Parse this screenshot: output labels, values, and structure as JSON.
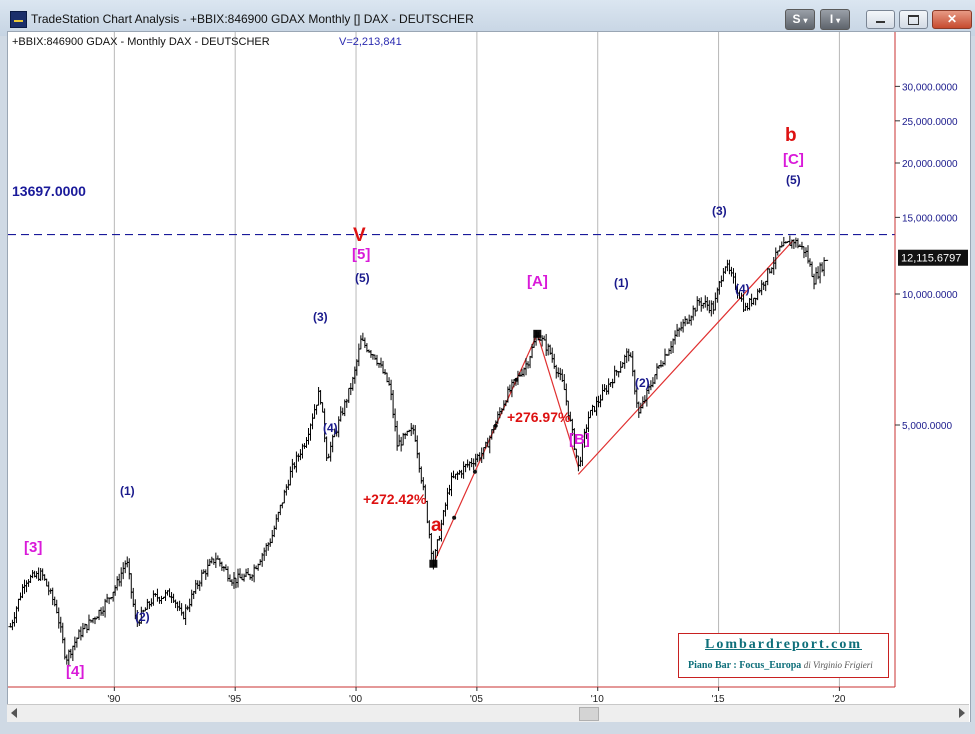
{
  "window": {
    "title": "TradeStation Chart Analysis - +BBIX:846900 GDAX Monthly [] DAX - DEUTSCHER",
    "s_button": "S",
    "i_button": "I"
  },
  "chart_data": {
    "type": "bar",
    "title": "+BBIX:846900 GDAX - Monthly  DAX - DEUTSCHER",
    "volume_label": "V=2,213,841",
    "y_scale": "log",
    "x_tick_labels": [
      "'90",
      "'95",
      "'00",
      "'05",
      "'10",
      "'15",
      "'20"
    ],
    "x_tick_years": [
      1990,
      1995,
      2000,
      2005,
      2010,
      2015,
      2020
    ],
    "y_tick_labels": [
      "30,000.0000",
      "25,000.0000",
      "20,000.0000",
      "15,000.0000",
      "10,000.0000",
      "5,000.0000"
    ],
    "y_tick_values": [
      30000,
      25000,
      20000,
      15000,
      10000,
      5000
    ],
    "ylim": [
      1250,
      40000
    ],
    "xlim": [
      1985.6,
      2022.3
    ],
    "horizontal_line": {
      "value": 13697,
      "label": "13697.0000",
      "color": "#1a1a9a"
    },
    "last_price": {
      "value": 12115.6797,
      "label": "12,115.6797"
    },
    "price_color": "#000000",
    "anchors": [
      [
        1985.7,
        1720
      ],
      [
        1986.3,
        2200
      ],
      [
        1987.0,
        2270
      ],
      [
        1987.6,
        1900
      ],
      [
        1988.0,
        1450
      ],
      [
        1988.5,
        1640
      ],
      [
        1989.5,
        1900
      ],
      [
        1990.1,
        2150
      ],
      [
        1990.5,
        2450
      ],
      [
        1990.9,
        1750
      ],
      [
        1991.6,
        2000
      ],
      [
        1992.4,
        2050
      ],
      [
        1992.8,
        1800
      ],
      [
        1993.6,
        2250
      ],
      [
        1994.2,
        2480
      ],
      [
        1994.9,
        2200
      ],
      [
        1995.6,
        2250
      ],
      [
        1996.5,
        2750
      ],
      [
        1997.3,
        3900
      ],
      [
        1997.9,
        4600
      ],
      [
        1998.5,
        6000
      ],
      [
        1998.8,
        4200
      ],
      [
        1999.4,
        5300
      ],
      [
        1999.9,
        6400
      ],
      [
        2000.2,
        7800
      ],
      [
        2000.8,
        7200
      ],
      [
        2001.4,
        6100
      ],
      [
        2001.7,
        4500
      ],
      [
        2002.4,
        4900
      ],
      [
        2002.9,
        3200
      ],
      [
        2003.2,
        2400
      ],
      [
        2003.9,
        3700
      ],
      [
        2004.5,
        4000
      ],
      [
        2005.3,
        4350
      ],
      [
        2006.2,
        5800
      ],
      [
        2007.1,
        7000
      ],
      [
        2007.5,
        8100
      ],
      [
        2008.0,
        7400
      ],
      [
        2008.6,
        6100
      ],
      [
        2009.2,
        4000
      ],
      [
        2009.6,
        5200
      ],
      [
        2010.3,
        6000
      ],
      [
        2011.3,
        7400
      ],
      [
        2011.7,
        5300
      ],
      [
        2012.4,
        6600
      ],
      [
        2013.2,
        8000
      ],
      [
        2014.2,
        9600
      ],
      [
        2014.8,
        9300
      ],
      [
        2015.25,
        11800
      ],
      [
        2015.8,
        10200
      ],
      [
        2016.1,
        9200
      ],
      [
        2016.8,
        10500
      ],
      [
        2017.5,
        12600
      ],
      [
        2018.1,
        13300
      ],
      [
        2018.6,
        12500
      ],
      [
        2018.95,
        10800
      ],
      [
        2019.5,
        12200
      ]
    ]
  },
  "annotations": {
    "wave_V": "V",
    "wave_5_bracket": "[5]",
    "wave_5": "(5)",
    "wave_3a": "(3)",
    "wave_4a": "(4)",
    "wave_1a": "(1)",
    "wave_2a": "(2)",
    "wave_3_bracket": "[3]",
    "wave_4_bracket": "[4]",
    "wave_a": "a",
    "pct_a": "+272.42%",
    "wave_A_bracket": "[A]",
    "wave_B_bracket": "[B]",
    "pct_B": "+276.97%",
    "wave_1b": "(1)",
    "wave_2b": "(2)",
    "wave_3b": "(3)",
    "wave_4b": "(4)",
    "wave_5b": "(5)",
    "wave_C_bracket": "[C]",
    "wave_b": "b",
    "colors": {
      "red": "#dd1111",
      "magenta": "#d91ad9",
      "navy": "#1a1a8c",
      "trend": "#e03030"
    }
  },
  "watermark": {
    "title": "Lombardreport.com",
    "subtitle": "Piano Bar : Focus_Europa",
    "author": "di Virginio Frigieri"
  }
}
